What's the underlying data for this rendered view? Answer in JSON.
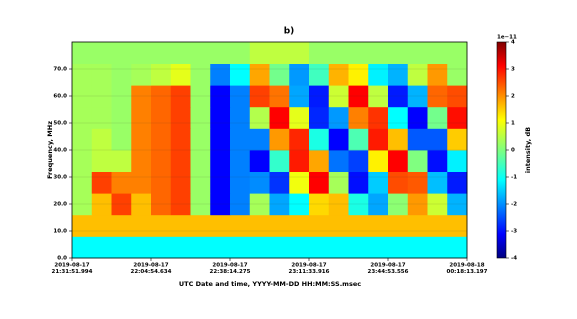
{
  "chart_data": {
    "type": "spectrogram",
    "title": "b)",
    "x_label": "UTC Date and time, YYYY-MM-DD HH:MM:SS.msec",
    "y_label": "Frequency, MHz",
    "x_tick_labels": [
      [
        "2019-08-17",
        "21:31:51.994"
      ],
      [
        "2019-08-17",
        "22:04:54.634"
      ],
      [
        "2019-08-17",
        "22:38:14.275"
      ],
      [
        "2019-08-17",
        "23:11:33.916"
      ],
      [
        "2019-08-17",
        "23:44:53.556"
      ],
      [
        "2019-08-18",
        "00:18:13.197"
      ]
    ],
    "ylim": [
      0,
      80
    ],
    "yticks": [
      {
        "value": 0,
        "label": "0.0"
      },
      {
        "value": 10,
        "label": "10.0"
      },
      {
        "value": 20,
        "label": "20.0"
      },
      {
        "value": 30,
        "label": "30.0"
      },
      {
        "value": 40,
        "label": "40.0"
      },
      {
        "value": 50,
        "label": "50.0"
      },
      {
        "value": 60,
        "label": "60.0"
      },
      {
        "value": 70,
        "label": "70.0"
      }
    ],
    "y_bins": [
      0,
      8,
      16,
      24,
      32,
      40,
      48,
      56,
      64,
      72,
      80
    ],
    "colormap": "jet",
    "clim": [
      -4,
      4
    ],
    "colorbar_label": "intensity, dB",
    "colorbar_offset_label": "1e−11",
    "colorbar_ticks": [
      -4,
      -3,
      -2,
      -1,
      0,
      1,
      2,
      3,
      4
    ],
    "values": [
      [
        -1,
        -1,
        -1,
        -1,
        -1,
        -1,
        -1,
        -1,
        -1,
        -1,
        -1,
        -1,
        -1,
        -1,
        -1,
        -1,
        -1,
        -1,
        -1,
        -1
      ],
      [
        1.5,
        1.5,
        1.5,
        1.5,
        1.5,
        1.5,
        1.5,
        1.5,
        1.5,
        1.5,
        1.5,
        1.5,
        1.5,
        1.5,
        1.5,
        1.5,
        1.5,
        1.5,
        1.5,
        1.5
      ],
      [
        0.3,
        1.5,
        2.5,
        1.5,
        2.2,
        2.5,
        0.2,
        -3,
        -2,
        0.3,
        -1.7,
        -1,
        1.3,
        1.5,
        -0.8,
        -1.7,
        0.1,
        1.8,
        0.6,
        -1.6
      ],
      [
        0.3,
        2.5,
        2,
        2,
        2.2,
        2.5,
        0.2,
        -3,
        -2,
        -1.9,
        -2.6,
        0.9,
        3,
        0.3,
        -2.9,
        -1.4,
        2.4,
        2.3,
        -1.5,
        -2.8
      ],
      [
        0.3,
        0.5,
        0.5,
        2,
        2.2,
        2.5,
        0.2,
        -3,
        -2,
        -3,
        -0.6,
        2.8,
        1.7,
        -2.1,
        -2.5,
        1.1,
        3,
        0,
        -2.9,
        -1.1
      ],
      [
        0.3,
        0.5,
        0.2,
        2,
        2.2,
        2.5,
        0.2,
        -3,
        -2,
        -2,
        1.8,
        2.7,
        -0.8,
        -3,
        -0.4,
        2.8,
        1.5,
        -2.3,
        -2.3,
        1.4
      ],
      [
        0.3,
        0.3,
        0.2,
        2,
        2.2,
        2.5,
        0.2,
        -3,
        -2,
        0.4,
        3,
        0.8,
        -2.7,
        -1.8,
        2,
        2.6,
        -1,
        -3,
        -0.1,
        2.9
      ],
      [
        0.3,
        0.3,
        0.2,
        2,
        2.2,
        2.5,
        0.2,
        -3,
        -2,
        2.5,
        2.1,
        -1.7,
        -2.8,
        0.6,
        3,
        0.5,
        -2.8,
        -1.6,
        2.2,
        2.4
      ],
      [
        0.3,
        0.3,
        0.2,
        0.3,
        0.5,
        0.8,
        0.2,
        -2,
        -1,
        1.7,
        -0.1,
        -1.8,
        -0.5,
        1.6,
        1.1,
        -1.1,
        -1.6,
        0.5,
        1.8,
        0.2
      ],
      [
        0.2,
        0.2,
        0.2,
        0.2,
        0.2,
        0.2,
        0.2,
        0.2,
        0.2,
        0.5,
        0.5,
        0.5,
        0.2,
        0.2,
        0.2,
        0.2,
        0.2,
        0.2,
        0.2,
        0.2
      ]
    ]
  }
}
